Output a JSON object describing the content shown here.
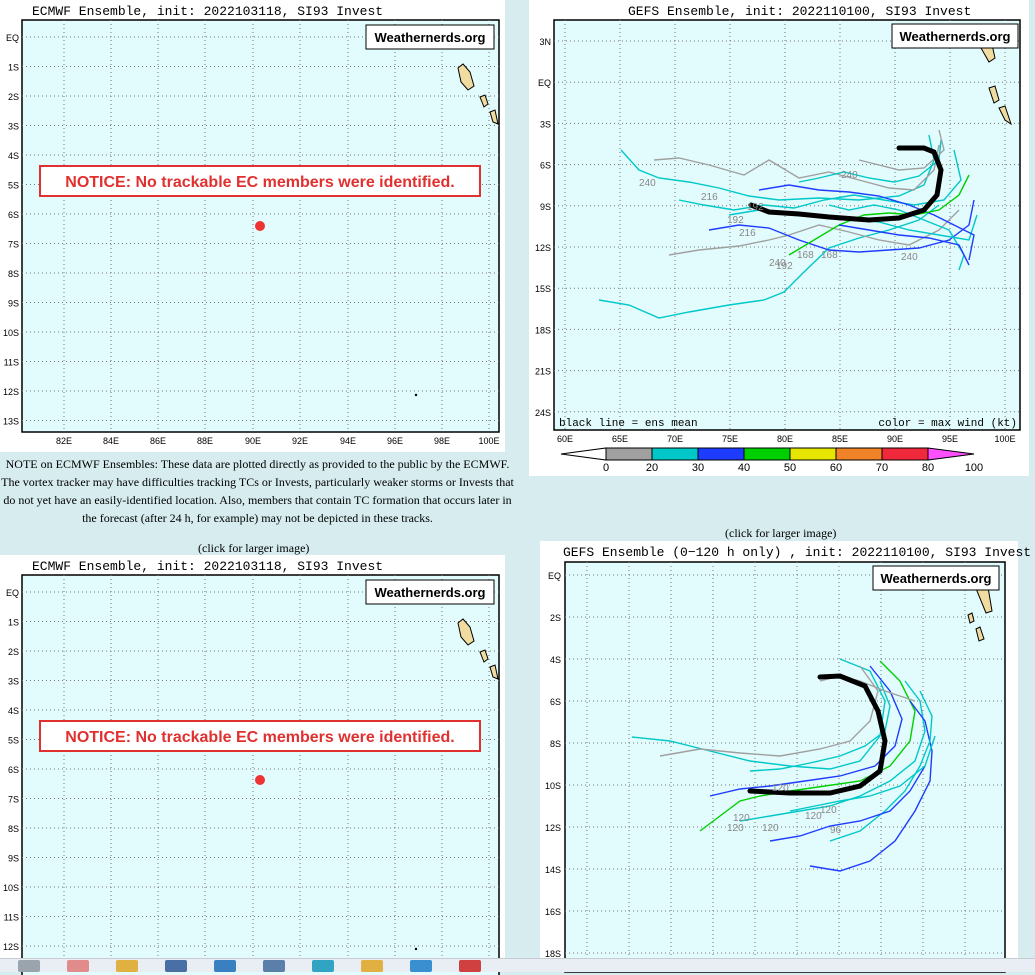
{
  "ecmwf": {
    "title": "ECMWF Ensemble, init: 2022103118, SI93 Invest",
    "brand": "Weathernerds.org",
    "notice": "NOTICE: No trackable EC members were identified.",
    "y_ticks": [
      "EQ",
      "1S",
      "2S",
      "3S",
      "4S",
      "5S",
      "6S",
      "7S",
      "8S",
      "9S",
      "10S",
      "11S",
      "12S",
      "13S"
    ],
    "x_ticks": [
      "82E",
      "84E",
      "86E",
      "88E",
      "90E",
      "92E",
      "94E",
      "96E",
      "98E",
      "100E"
    ],
    "y_ticks_bottom": [
      "EQ",
      "1S",
      "2S",
      "3S",
      "4S",
      "5S",
      "6S",
      "7S",
      "8S",
      "9S",
      "10S",
      "11S",
      "12S"
    ]
  },
  "note": {
    "text": "NOTE on ECMWF Ensembles: These data are plotted directly as provided to the public by the ECMWF. The vortex tracker may have difficulties tracking TCs or Invests, particularly weaker storms or Invests that do not yet have an easily-identified location. Also, members that contain TC formation that occurs later in the forecast (after 24 h, for example) may not be depicted in these tracks."
  },
  "captions": {
    "left": "(click for larger image)",
    "right": "(click for larger image)"
  },
  "gefs": {
    "title": "GEFS Ensemble, init: 2022110100, SI93 Invest",
    "brand": "Weathernerds.org",
    "y_ticks": [
      "3N",
      "EQ",
      "3S",
      "6S",
      "9S",
      "12S",
      "15S",
      "18S",
      "21S",
      "24S"
    ],
    "x_ticks": [
      "60E",
      "65E",
      "70E",
      "75E",
      "80E",
      "85E",
      "90E",
      "95E",
      "100E"
    ],
    "footer_left": "black line = ens mean",
    "footer_right": "color = max wind (kt)",
    "legend_values": [
      "0",
      "20",
      "30",
      "40",
      "50",
      "60",
      "70",
      "80",
      "100"
    ],
    "legend_colors": [
      "#a0a0a0",
      "#00c8c8",
      "#1e3cff",
      "#00d000",
      "#e6e600",
      "#f08228",
      "#f0283c",
      "#ff50ff"
    ],
    "labels": [
      "240",
      "216",
      "240",
      "192",
      "216",
      "168",
      "168",
      "192",
      "240",
      "240",
      "192"
    ]
  },
  "gefs120": {
    "title": "GEFS Ensemble (0−120 h only) , init: 2022110100, SI93 Invest",
    "brand": "Weathernerds.org",
    "y_ticks": [
      "EQ",
      "2S",
      "4S",
      "6S",
      "8S",
      "10S",
      "12S",
      "14S",
      "16S",
      "18S"
    ],
    "labels": [
      "120",
      "120",
      "120",
      "120",
      "120",
      "96",
      "120"
    ]
  },
  "taskbar": {
    "icons": [
      "file-explorer-icon",
      "folder-icon",
      "app-icon-1",
      "app-icon-2",
      "app-icon-3",
      "browser-icon",
      "app-icon-4",
      "app-icon-5",
      "app-icon-6",
      "app-icon-7"
    ]
  }
}
